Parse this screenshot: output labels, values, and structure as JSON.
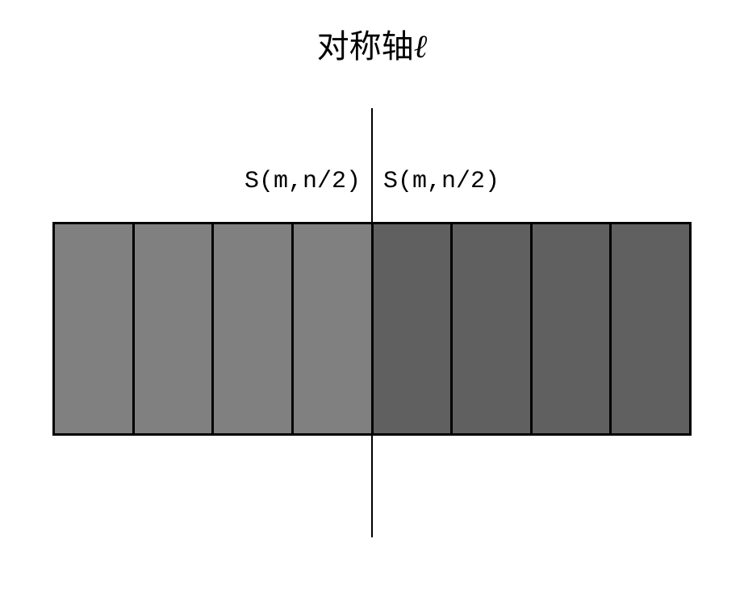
{
  "title": "对称轴",
  "title_symbol": "ℓ",
  "label_left": "S(m,n/2)",
  "label_right": "S(m,n/2)",
  "diagram": {
    "type": "infographic",
    "axis_color": "#000000",
    "axis_width": 2,
    "bar": {
      "border_color": "#000000",
      "border_width": 3,
      "divider_color": "#000000",
      "divider_width": 3,
      "left_cells": 4,
      "right_cells": 4,
      "left_color": "#808080",
      "right_color": "#606060"
    },
    "background_color": "#ffffff",
    "title_fontsize": 40,
    "label_fontsize": 30
  }
}
